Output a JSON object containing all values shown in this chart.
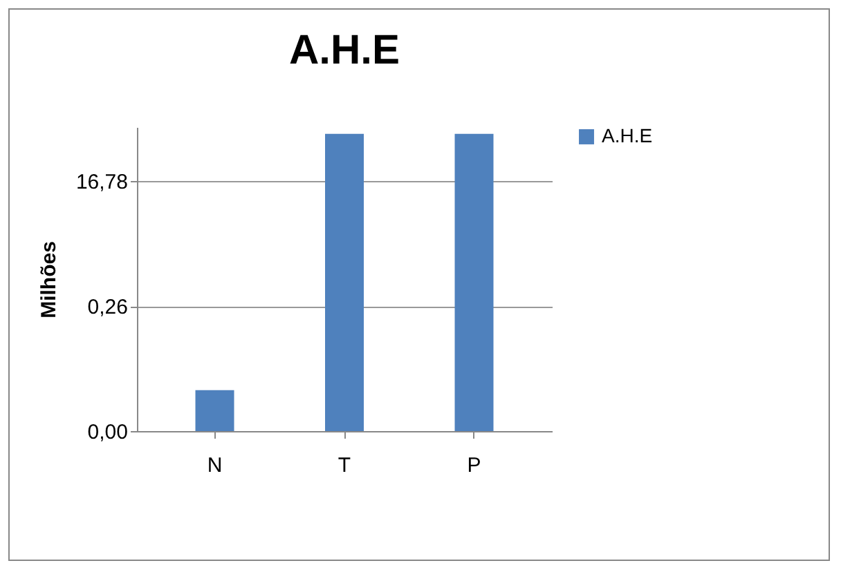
{
  "chart_data": {
    "type": "bar",
    "title": "A.H.E",
    "ylabel": "Milhões",
    "categories": [
      "N",
      "T",
      "P"
    ],
    "series": [
      {
        "name": "A.H.E",
        "color": "#4f81bd",
        "values": [
          0.016,
          80,
          80
        ]
      }
    ],
    "log": true,
    "ylim": [
      0.0041,
      100
    ],
    "yticks": [
      {
        "value": 0.0041,
        "label": "0,00"
      },
      {
        "value": 0.26,
        "label": "0,26"
      },
      {
        "value": 16.78,
        "label": "16,78"
      }
    ],
    "grid": "y",
    "legend": "right"
  }
}
